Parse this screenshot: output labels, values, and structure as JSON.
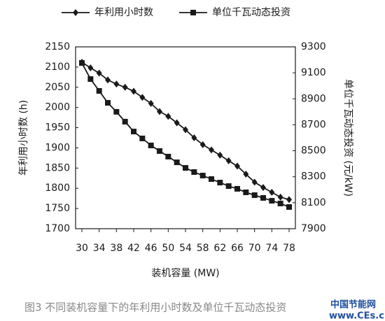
{
  "chart_data": {
    "type": "line",
    "x_label": "装机容量 (MW)",
    "y_label": "年利用小时数 (h)",
    "y2_label": "单位千瓦动态投资 (元/kW)",
    "caption": "图3 不同装机容量下的年利用小时数及单位千瓦动态投资",
    "watermark": [
      "中国节能网",
      "www.CEs.cn"
    ],
    "x": [
      30,
      32,
      34,
      36,
      38,
      40,
      42,
      44,
      46,
      48,
      50,
      52,
      54,
      56,
      58,
      60,
      62,
      64,
      66,
      68,
      70,
      72,
      74,
      76,
      78
    ],
    "series": [
      {
        "name": "年利用小时数",
        "color": "#1a1a1a",
        "marker": "diamond",
        "values": [
          2112,
          2098,
          2085,
          2068,
          2058,
          2050,
          2040,
          2025,
          2010,
          1990,
          1978,
          1962,
          1945,
          1925,
          1908,
          1895,
          1882,
          1868,
          1855,
          1835,
          1815,
          1802,
          1790,
          1778,
          1772
        ]
      },
      {
        "name": "单位千瓦动态投资",
        "color": "#1a1a1a",
        "marker": "square",
        "axis": "y2",
        "values": [
          9176,
          9052,
          8961,
          8869,
          8800,
          8724,
          8648,
          8595,
          8541,
          8498,
          8455,
          8411,
          8368,
          8336,
          8309,
          8282,
          8255,
          8228,
          8207,
          8180,
          8158,
          8137,
          8115,
          8094,
          8067
        ]
      }
    ],
    "xlim": [
      30,
      78
    ],
    "xticks": [
      30,
      34,
      38,
      42,
      46,
      50,
      54,
      58,
      62,
      66,
      70,
      74,
      78
    ],
    "ylim": [
      1700,
      2150
    ],
    "yticks": [
      1700,
      1750,
      1800,
      1850,
      1900,
      1950,
      2000,
      2050,
      2100,
      2150
    ],
    "y2lim": [
      7900,
      9300
    ],
    "y2ticks": [
      7900,
      8100,
      8300,
      8500,
      8700,
      8900,
      9100,
      9300
    ],
    "legend": "top",
    "grid": false
  }
}
